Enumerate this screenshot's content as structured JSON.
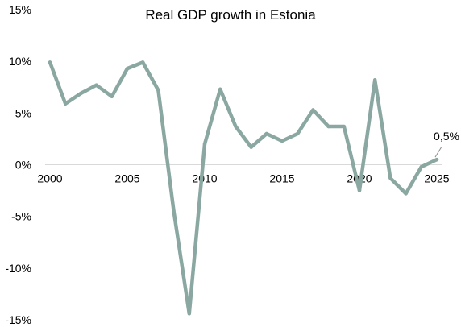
{
  "chart_data": {
    "type": "line",
    "title": "Real GDP growth in Estonia",
    "xlabel": "",
    "ylabel": "",
    "x": [
      2000,
      2001,
      2002,
      2003,
      2004,
      2005,
      2006,
      2007,
      2008,
      2009,
      2010,
      2011,
      2012,
      2013,
      2014,
      2015,
      2016,
      2017,
      2018,
      2019,
      2020,
      2021,
      2022,
      2023,
      2024,
      2025
    ],
    "series": [
      {
        "values": [
          9.9,
          5.9,
          6.9,
          7.7,
          6.6,
          9.3,
          9.9,
          7.2,
          -4.5,
          -14.4,
          2.0,
          7.3,
          3.7,
          1.7,
          3.0,
          2.3,
          3.0,
          5.3,
          3.7,
          3.7,
          -2.5,
          8.2,
          -1.3,
          -2.8,
          -0.2,
          0.5
        ]
      }
    ],
    "x_ticks": [
      "2000",
      "2005",
      "2010",
      "2015",
      "2020",
      "2025"
    ],
    "x_tick_values": [
      2000,
      2005,
      2010,
      2015,
      2020,
      2025
    ],
    "y_ticks": [
      "15%",
      "10%",
      "5%",
      "0%",
      "-5%",
      "-10%",
      "-15%"
    ],
    "y_tick_values": [
      15,
      10,
      5,
      0,
      -5,
      -10,
      -15
    ],
    "xlim": [
      2000,
      2025
    ],
    "ylim": [
      -15,
      15
    ],
    "grid": false,
    "legend": "none",
    "line_color": "#8aa8a1",
    "annotation": {
      "text": "0,5%",
      "x": 2025,
      "y": 0.5
    }
  }
}
